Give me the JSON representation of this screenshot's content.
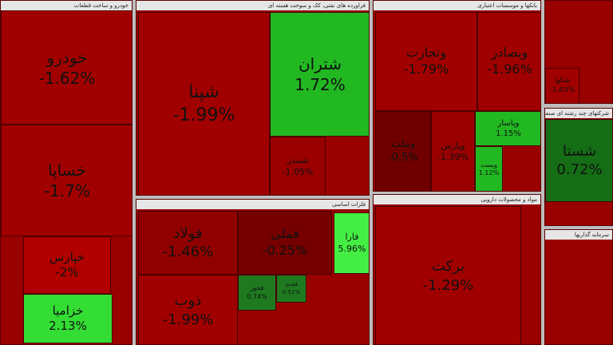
{
  "sectors": [
    {
      "title": "خودرو و ساخت قطعات",
      "tiles": [
        {
          "name": "خودرو",
          "change": "-1.62%",
          "color": "#a10000"
        },
        {
          "name": "خساپا",
          "change": "-1.7%",
          "color": "#a10000"
        },
        {
          "name": "خپارس",
          "change": "-2%",
          "color": "#b00000"
        },
        {
          "name": "خزامیا",
          "change": "2.13%",
          "color": "#33dd33"
        }
      ]
    },
    {
      "title": "فراورده های نفتی، کک و سوخت هسته ای",
      "tiles": [
        {
          "name": "شپنا",
          "change": "-1.99%",
          "color": "#a10000"
        },
        {
          "name": "شتران",
          "change": "1.72%",
          "color": "#22b822"
        },
        {
          "name": "شبندر",
          "change": "-1.05%",
          "color": "#9a0000"
        }
      ]
    },
    {
      "title": "بانکها و موسسات اعتباری",
      "tiles": [
        {
          "name": "وتجارت",
          "change": "-1.79%",
          "color": "#a10000"
        },
        {
          "name": "وبصادر",
          "change": "-1.96%",
          "color": "#a10000"
        },
        {
          "name": "وملت",
          "change": "-0.5%",
          "color": "#700000"
        },
        {
          "name": "وپارس",
          "change": "-1.39%",
          "color": "#9a0000"
        },
        {
          "name": "وپاسار",
          "change": "1.15%",
          "color": "#22b822"
        },
        {
          "name": "وپست",
          "change": "1.12%",
          "color": "#22b822"
        }
      ]
    },
    {
      "tiles": [
        {
          "name": "شکوا",
          "change": "-1.63%",
          "color": "#a10000"
        }
      ]
    },
    {
      "title": "شرکتهای چند رشته ای صنعتی",
      "tiles": [
        {
          "name": "شستا",
          "change": "0.72%",
          "color": "#156e15"
        }
      ]
    },
    {
      "title": "فلزات اساسی",
      "tiles": [
        {
          "name": "فولاد",
          "change": "-1.46%",
          "color": "#900000"
        },
        {
          "name": "ذوب",
          "change": "-1.99%",
          "color": "#a10000"
        },
        {
          "name": "فملی",
          "change": "-0.25%",
          "color": "#760000"
        },
        {
          "name": "فارا",
          "change": "5.96%",
          "color": "#44ee44"
        },
        {
          "name": "فخوز",
          "change": "0.74%",
          "color": "#1f7a1f"
        },
        {
          "name": "فغدی",
          "change": "0.51%",
          "color": "#1f7a1f"
        }
      ]
    },
    {
      "title": "مواد و محصولات دارویی",
      "tiles": [
        {
          "name": "برکت",
          "change": "-1.29%",
          "color": "#a10000"
        }
      ]
    },
    {
      "title": "سرمایه گذاریها",
      "tiles": []
    }
  ]
}
